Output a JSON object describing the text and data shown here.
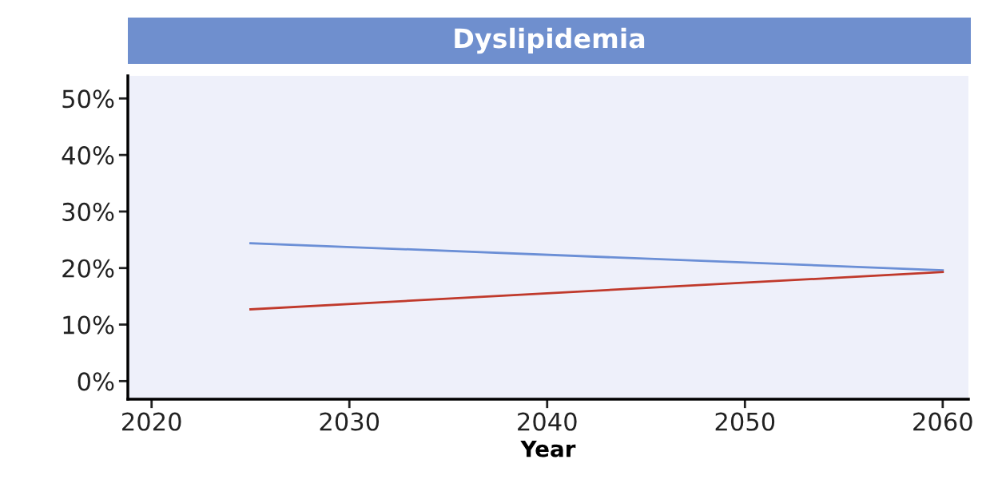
{
  "chart_data": {
    "type": "line",
    "title": "Dyslipidemia",
    "xlabel": "Year",
    "x": [
      2025,
      2060
    ],
    "series": [
      {
        "color": "#6b8fd6",
        "values": [
          24.4,
          19.6
        ]
      },
      {
        "color": "#c0392b",
        "values": [
          12.7,
          19.3
        ]
      }
    ],
    "xlim": [
      2018.8,
      2061.3
    ],
    "xticks": [
      2020,
      2030,
      2040,
      2050,
      2060
    ],
    "ylim": [
      -3.2,
      54
    ],
    "yticks": [
      {
        "value": 0,
        "label": "0%"
      },
      {
        "value": 10,
        "label": "10%"
      },
      {
        "value": 20,
        "label": "20%"
      },
      {
        "value": 30,
        "label": "30%"
      },
      {
        "value": 40,
        "label": "40%"
      },
      {
        "value": 50,
        "label": "50%"
      }
    ],
    "grid": false,
    "legend": false,
    "marker": "none",
    "line_style": "solid"
  }
}
